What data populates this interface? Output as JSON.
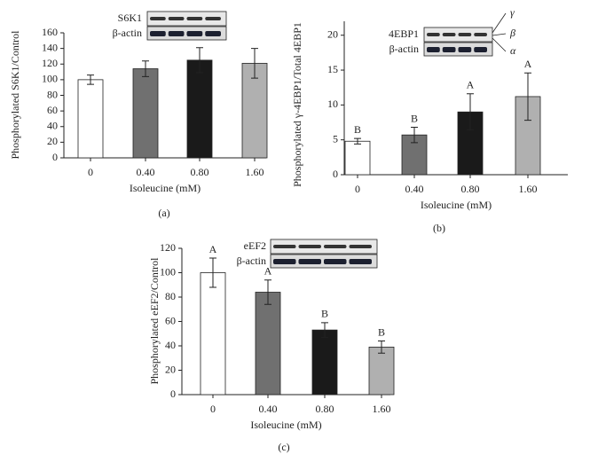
{
  "chart_data": [
    {
      "type": "bar",
      "caption": "(a)",
      "ylabel": "Phosphorylated S6K1/Control",
      "xlabel": "Isoleucine (mM)",
      "categories": [
        "0",
        "0.40",
        "0.80",
        "1.60"
      ],
      "values": [
        100,
        114,
        125,
        121
      ],
      "errors": [
        6,
        10,
        16,
        19
      ],
      "colors": [
        "#ffffff",
        "#707070",
        "#1a1a1a",
        "#b0b0b0"
      ],
      "ylim": [
        0,
        160
      ],
      "yticks": [
        0,
        20,
        40,
        60,
        80,
        100,
        120,
        140,
        160
      ],
      "inset_labels": [
        "S6K1",
        "β-actin"
      ]
    },
    {
      "type": "bar",
      "caption": "(b)",
      "ylabel": "Phosphorylated γ-4EBP1/Total 4EBP1",
      "xlabel": "Isoleucine (mM)",
      "categories": [
        "0",
        "0.40",
        "0.80",
        "1.60"
      ],
      "values": [
        4.8,
        5.7,
        9.0,
        11.2
      ],
      "errors": [
        0.4,
        1.1,
        2.6,
        3.4
      ],
      "letters": [
        "B",
        "B",
        "A",
        "A"
      ],
      "colors": [
        "#ffffff",
        "#707070",
        "#1a1a1a",
        "#b0b0b0"
      ],
      "ylim": [
        0,
        22
      ],
      "yticks": [
        0,
        5,
        10,
        15,
        20
      ],
      "inset_labels": [
        "4EBP1",
        "β-actin"
      ],
      "band_labels": [
        "γ",
        "β",
        "α"
      ]
    },
    {
      "type": "bar",
      "caption": "(c)",
      "ylabel": "Phosphorylated eEF2/Control",
      "xlabel": "Isoleucine (mM)",
      "categories": [
        "0",
        "0.40",
        "0.80",
        "1.60"
      ],
      "values": [
        100,
        84,
        53,
        39
      ],
      "errors": [
        12,
        10,
        6,
        5
      ],
      "letters": [
        "A",
        "A",
        "B",
        "B"
      ],
      "colors": [
        "#ffffff",
        "#707070",
        "#1a1a1a",
        "#b0b0b0"
      ],
      "ylim": [
        0,
        120
      ],
      "yticks": [
        0,
        20,
        40,
        60,
        80,
        100,
        120
      ],
      "inset_labels": [
        "eEF2",
        "β-actin"
      ]
    }
  ]
}
